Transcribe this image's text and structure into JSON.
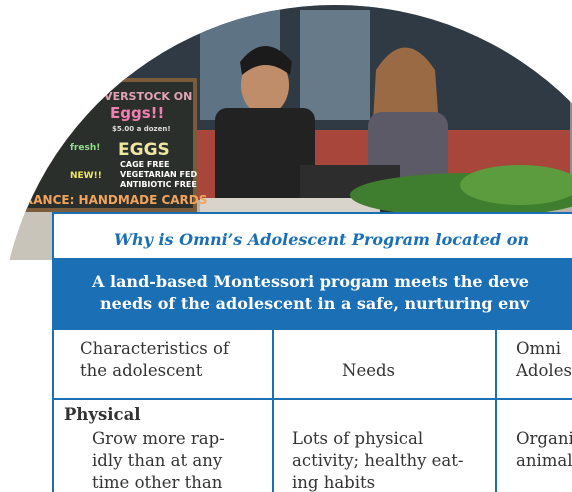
{
  "photo": {
    "chalkboard": [
      "OVERSTOCK ON",
      "Eggs!!",
      "$5.00 a dozen!",
      "EGGS",
      "CAGE FREE",
      "VEGETARIAN FED",
      "ANTIBIOTIC FREE",
      "RANCE: HANDMADE CARDS",
      "NEW!!",
      "fresh!"
    ]
  },
  "table": {
    "title": "Why is Omni’s Adolescent Program located on",
    "banner": [
      "A land-based Montessori progam meets the deve",
      "needs of the adolescent in a safe, nurturing env"
    ],
    "headers": [
      [
        "Characteristics of",
        "the adolescent"
      ],
      [
        "Needs"
      ],
      [
        "Omni",
        "Adoles"
      ]
    ],
    "rows": [
      {
        "category": "Physical",
        "cells": [
          [
            "Grow more rap-",
            "idly than at any",
            "time other than"
          ],
          [
            "Lots of physical",
            "activity; healthy eat-",
            "ing habits"
          ],
          [
            "Organi",
            "animal"
          ]
        ]
      }
    ]
  }
}
